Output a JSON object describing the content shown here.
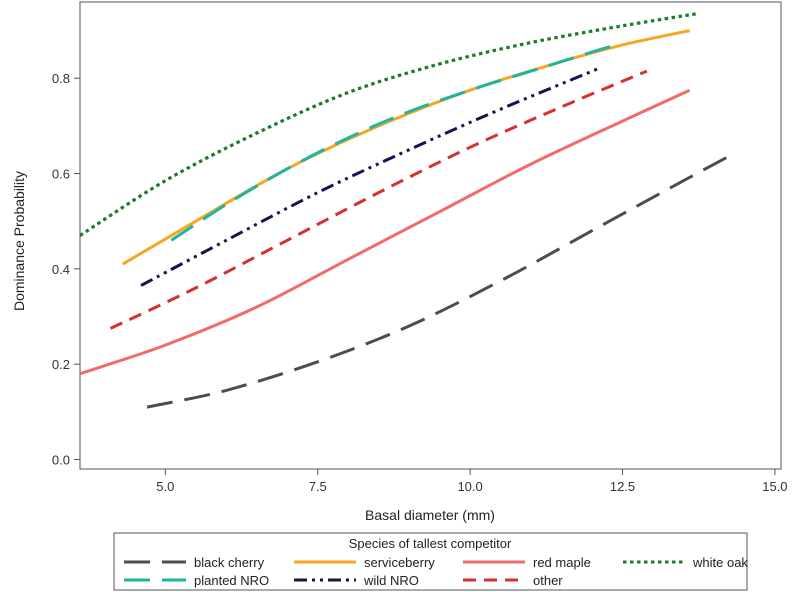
{
  "chart_data": {
    "type": "line",
    "title": "",
    "xlabel": "Basal diameter (mm)",
    "ylabel": "Dominance Probability",
    "xlim": [
      3.6,
      15.1
    ],
    "ylim": [
      -0.02,
      0.96
    ],
    "xticks": [
      "5.0",
      "7.5",
      "10.0",
      "12.5",
      "15.0"
    ],
    "yticks": [
      "0.0",
      "0.2",
      "0.4",
      "0.6",
      "0.8"
    ],
    "grid": false,
    "legend": {
      "title": "Species of tallest competitor",
      "placement": "bottom"
    },
    "series": [
      {
        "name": "black cherry",
        "color": "#4d4d4d",
        "dash": "long-dash",
        "x": [
          4.7,
          6.0,
          7.5,
          9.0,
          10.5,
          12.0,
          13.5,
          14.3
        ],
        "y": [
          0.11,
          0.145,
          0.205,
          0.28,
          0.375,
          0.48,
          0.585,
          0.64
        ]
      },
      {
        "name": "planted NRO",
        "color": "#1fb5a0",
        "dash": "long-dash",
        "x": [
          5.1,
          6.0,
          7.0,
          8.0,
          9.0,
          10.0,
          11.0,
          12.0,
          12.4
        ],
        "y": [
          0.46,
          0.535,
          0.61,
          0.675,
          0.73,
          0.775,
          0.815,
          0.855,
          0.87
        ]
      },
      {
        "name": "serviceberry",
        "color": "#f5a623",
        "dash": "solid",
        "x": [
          4.3,
          5.5,
          7.0,
          8.5,
          10.0,
          11.5,
          12.5,
          13.6
        ],
        "y": [
          0.41,
          0.5,
          0.61,
          0.7,
          0.775,
          0.835,
          0.87,
          0.9
        ]
      },
      {
        "name": "wild NRO",
        "color": "#14144f",
        "dash": "dash-dot-dot",
        "x": [
          4.6,
          6.0,
          7.5,
          9.0,
          10.5,
          12.1
        ],
        "y": [
          0.365,
          0.46,
          0.56,
          0.65,
          0.735,
          0.82
        ]
      },
      {
        "name": "red maple",
        "color": "#f26b6b",
        "dash": "solid",
        "x": [
          3.6,
          5.0,
          6.5,
          8.0,
          9.5,
          11.0,
          12.5,
          13.6
        ],
        "y": [
          0.18,
          0.24,
          0.32,
          0.42,
          0.52,
          0.62,
          0.71,
          0.775
        ]
      },
      {
        "name": "other",
        "color": "#d63033",
        "dash": "dash",
        "x": [
          4.1,
          5.5,
          7.0,
          8.5,
          10.0,
          11.5,
          12.9
        ],
        "y": [
          0.275,
          0.36,
          0.46,
          0.56,
          0.655,
          0.74,
          0.815
        ]
      },
      {
        "name": "white oak",
        "color": "#1e7a2a",
        "dash": "dot",
        "x": [
          3.6,
          5.0,
          6.5,
          8.0,
          9.5,
          11.0,
          12.5,
          13.7
        ],
        "y": [
          0.47,
          0.585,
          0.685,
          0.77,
          0.83,
          0.875,
          0.91,
          0.935
        ]
      }
    ]
  }
}
